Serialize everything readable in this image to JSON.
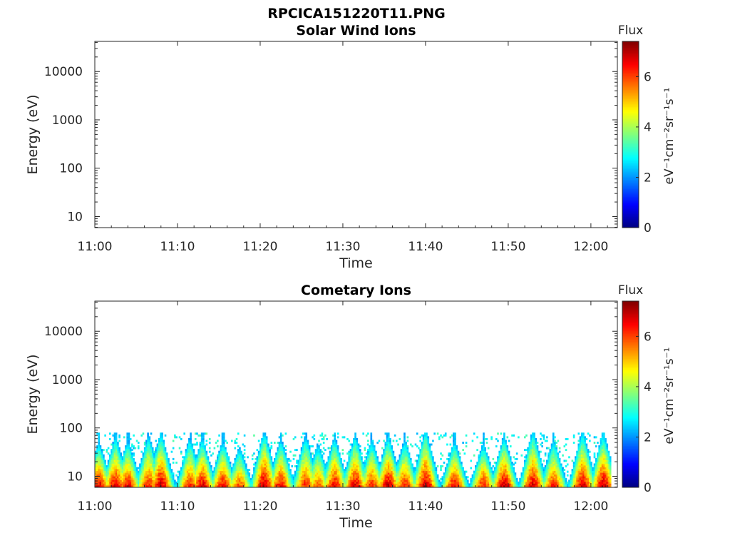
{
  "figure": {
    "title": "RPCICA151220T11.PNG"
  },
  "colors": {
    "colormap": [
      "#00007f",
      "#0000ff",
      "#007fff",
      "#00ffff",
      "#7fff7f",
      "#ffff00",
      "#ff7f00",
      "#ff0000",
      "#7f0000"
    ]
  },
  "chart_data": [
    {
      "type": "heatmap",
      "title": "Solar Wind Ions",
      "xlabel": "Time",
      "ylabel": "Energy (eV)",
      "y_scale": "log",
      "x_ticks": [
        "11:00",
        "11:10",
        "11:20",
        "11:30",
        "11:40",
        "11:50",
        "12:00"
      ],
      "y_ticks": [
        "10",
        "100",
        "1000",
        "10000"
      ],
      "colorbar": {
        "title": "Flux",
        "label": "eV⁻¹cm⁻²sr⁻¹s⁻¹",
        "ticks": [
          "0",
          "2",
          "4",
          "6"
        ],
        "range": [
          0,
          7.4
        ]
      },
      "cells": []
    },
    {
      "type": "heatmap",
      "title": "Cometary Ions",
      "xlabel": "Time",
      "ylabel": "Energy (eV)",
      "y_scale": "log",
      "x_ticks": [
        "11:00",
        "11:10",
        "11:20",
        "11:30",
        "11:40",
        "11:50",
        "12:00"
      ],
      "y_ticks": [
        "10",
        "100",
        "1000",
        "10000"
      ],
      "colorbar": {
        "title": "Flux",
        "label": "eV⁻¹cm⁻²sr⁻¹s⁻¹",
        "ticks": [
          "0",
          "2",
          "4",
          "6"
        ],
        "range": [
          0,
          7.4
        ]
      },
      "energy_range_eV": [
        6,
        80
      ],
      "bursts": [
        {
          "t": "11:00.5",
          "peak_flux": 7.0,
          "top_eV": 45
        },
        {
          "t": "11:02.5",
          "peak_flux": 7.0,
          "top_eV": 60
        },
        {
          "t": "11:04.0",
          "peak_flux": 6.8,
          "top_eV": 50
        },
        {
          "t": "11:06.5",
          "peak_flux": 6.5,
          "top_eV": 70
        },
        {
          "t": "11:08.0",
          "peak_flux": 7.2,
          "top_eV": 70
        },
        {
          "t": "11:11.5",
          "peak_flux": 6.5,
          "top_eV": 60
        },
        {
          "t": "11:13.0",
          "peak_flux": 7.0,
          "top_eV": 55
        },
        {
          "t": "11:15.5",
          "peak_flux": 6.8,
          "top_eV": 50
        },
        {
          "t": "11:17.5",
          "peak_flux": 6.2,
          "top_eV": 40
        },
        {
          "t": "11:20.5",
          "peak_flux": 7.2,
          "top_eV": 75
        },
        {
          "t": "11:22.5",
          "peak_flux": 6.8,
          "top_eV": 55
        },
        {
          "t": "11:25.5",
          "peak_flux": 6.5,
          "top_eV": 70
        },
        {
          "t": "11:27.0",
          "peak_flux": 6.0,
          "top_eV": 50
        },
        {
          "t": "11:29.0",
          "peak_flux": 6.8,
          "top_eV": 60
        },
        {
          "t": "11:31.5",
          "peak_flux": 7.0,
          "top_eV": 65
        },
        {
          "t": "11:33.5",
          "peak_flux": 6.5,
          "top_eV": 55
        },
        {
          "t": "11:35.5",
          "peak_flux": 7.2,
          "top_eV": 60
        },
        {
          "t": "11:37.5",
          "peak_flux": 6.5,
          "top_eV": 55
        },
        {
          "t": "11:40.0",
          "peak_flux": 7.2,
          "top_eV": 80
        },
        {
          "t": "11:43.5",
          "peak_flux": 6.8,
          "top_eV": 50
        },
        {
          "t": "11:47.0",
          "peak_flux": 6.6,
          "top_eV": 45
        },
        {
          "t": "11:49.5",
          "peak_flux": 7.2,
          "top_eV": 60
        },
        {
          "t": "11:53.0",
          "peak_flux": 7.0,
          "top_eV": 80
        },
        {
          "t": "11:55.5",
          "peak_flux": 6.5,
          "top_eV": 55
        },
        {
          "t": "11:59.0",
          "peak_flux": 7.0,
          "top_eV": 80
        },
        {
          "t": "12:01.5",
          "peak_flux": 7.2,
          "top_eV": 70
        }
      ]
    }
  ]
}
